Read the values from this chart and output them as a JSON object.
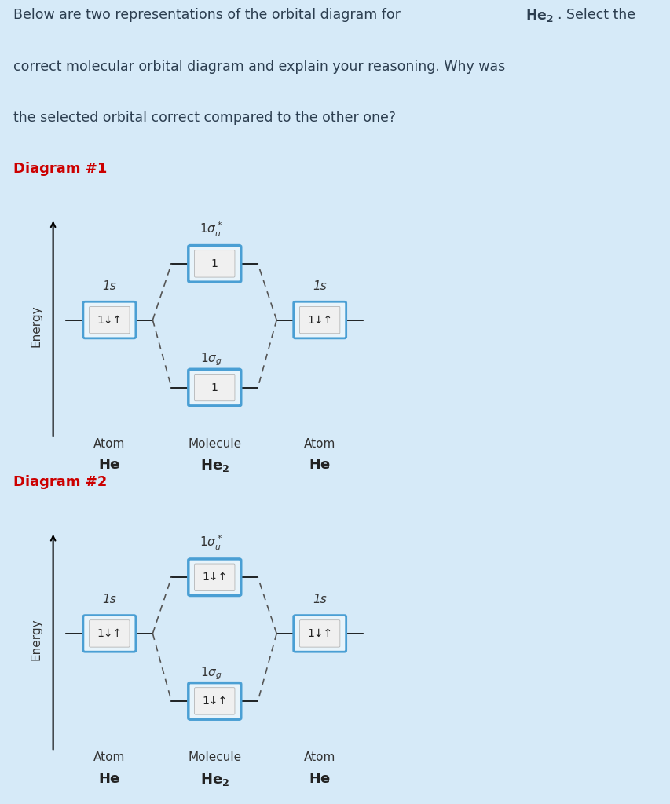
{
  "bg_color": "#d6eaf8",
  "panel_bg": "#ffffff",
  "title_text_part1": "Below are two representations of the orbital diagram for ",
  "title_bold_part": "He₂",
  "title_text_part2": ". Select the\ncorrect molecular orbital diagram and explain your reasoning. Why was\nthe selected orbital correct compared to the other one?",
  "diagram1_label": "Diagram #1",
  "diagram2_label": "Diagram #2",
  "label_color": "#cc0000",
  "text_color": "#2c3e50",
  "box_border_color": "#4a9fd4",
  "box_fill_color": "#e8f4fb",
  "inner_box_fill": "#f0f0f0",
  "atom_label": "Atom",
  "molecule_label": "Molecule",
  "he_label": "He",
  "he2_label": "He₂",
  "energy_label": "Energy",
  "sigma_g_label": "1σ",
  "sigma_g_sub": "g",
  "sigma_u_label": "1σ",
  "sigma_u_sub": "u",
  "star_label": "*",
  "orb_1s": "1s",
  "d1_sigma_u_content": "1",
  "d1_sigma_g_content": "1",
  "d1_atom_content": "1↓↑",
  "d2_sigma_u_content": "1↓↑",
  "d2_sigma_g_content": "1↓↑",
  "d2_atom_content": "1↓↑"
}
